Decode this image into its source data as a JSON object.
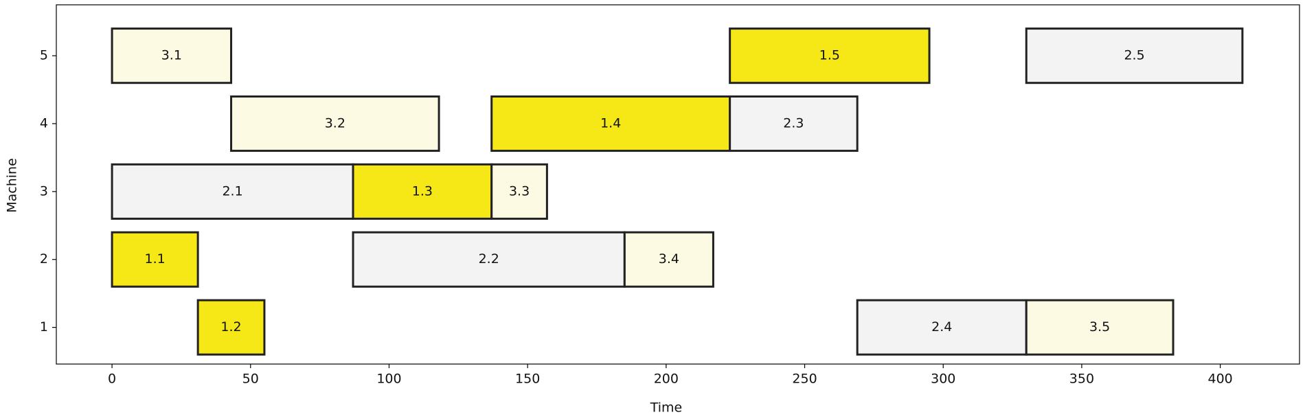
{
  "chart_data": {
    "type": "gantt",
    "xlabel": "Time",
    "ylabel": "Machine",
    "xlim": [
      -20.1,
      428.6
    ],
    "xticks": [
      0,
      50,
      100,
      150,
      200,
      250,
      300,
      350,
      400
    ],
    "ylim": [
      0.46,
      5.75
    ],
    "yticks": [
      1,
      2,
      3,
      4,
      5
    ],
    "tasks": [
      {
        "label": "3.1",
        "machine": 5,
        "start": 0,
        "end": 43,
        "color": "#fdfae3"
      },
      {
        "label": "1.5",
        "machine": 5,
        "start": 223,
        "end": 295,
        "color": "#f5e816"
      },
      {
        "label": "2.5",
        "machine": 5,
        "start": 330,
        "end": 408,
        "color": "#f3f3f3"
      },
      {
        "label": "3.2",
        "machine": 4,
        "start": 43,
        "end": 118,
        "color": "#fdfae3"
      },
      {
        "label": "1.4",
        "machine": 4,
        "start": 137,
        "end": 223,
        "color": "#f5e816"
      },
      {
        "label": "2.3",
        "machine": 4,
        "start": 223,
        "end": 269,
        "color": "#f3f3f3"
      },
      {
        "label": "2.1",
        "machine": 3,
        "start": 0,
        "end": 87,
        "color": "#f3f3f3"
      },
      {
        "label": "1.3",
        "machine": 3,
        "start": 87,
        "end": 137,
        "color": "#f5e816"
      },
      {
        "label": "3.3",
        "machine": 3,
        "start": 137,
        "end": 157,
        "color": "#fdfae3"
      },
      {
        "label": "1.1",
        "machine": 2,
        "start": 0,
        "end": 31,
        "color": "#f5e816"
      },
      {
        "label": "2.2",
        "machine": 2,
        "start": 87,
        "end": 185,
        "color": "#f3f3f3"
      },
      {
        "label": "3.4",
        "machine": 2,
        "start": 185,
        "end": 217,
        "color": "#fdfae3"
      },
      {
        "label": "1.2",
        "machine": 1,
        "start": 31,
        "end": 55,
        "color": "#f5e816"
      },
      {
        "label": "2.4",
        "machine": 1,
        "start": 269,
        "end": 330,
        "color": "#f3f3f3"
      },
      {
        "label": "3.5",
        "machine": 1,
        "start": 330,
        "end": 383,
        "color": "#fdfae3"
      }
    ]
  }
}
